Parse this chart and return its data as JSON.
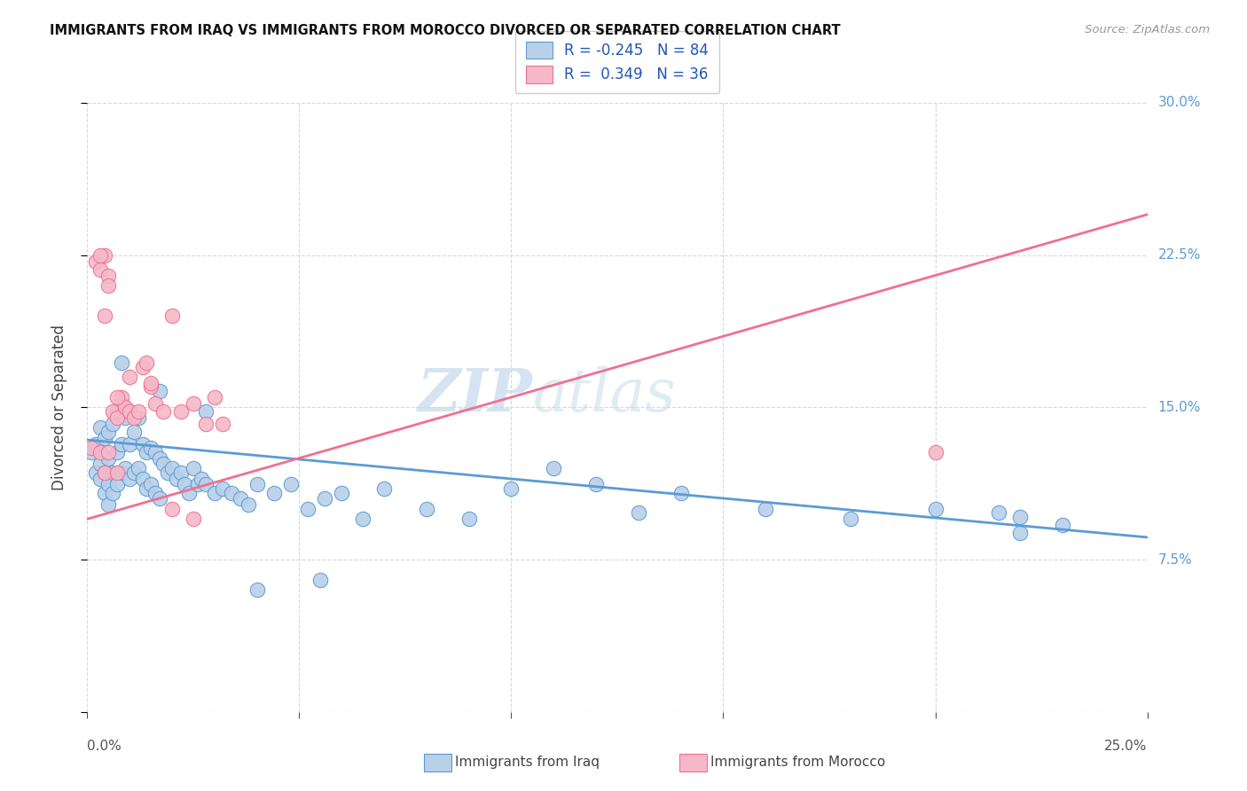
{
  "title": "IMMIGRANTS FROM IRAQ VS IMMIGRANTS FROM MOROCCO DIVORCED OR SEPARATED CORRELATION CHART",
  "source": "Source: ZipAtlas.com",
  "ylabel": "Divorced or Separated",
  "iraq_R": -0.245,
  "iraq_N": 84,
  "morocco_R": 0.349,
  "morocco_N": 36,
  "iraq_color": "#b8d0e8",
  "morocco_color": "#f5b8c8",
  "iraq_line_color": "#5b9bd5",
  "morocco_line_color": "#f07090",
  "legend_label_iraq": "Immigrants from Iraq",
  "legend_label_morocco": "Immigrants from Morocco",
  "watermark_zip": "ZIP",
  "watermark_atlas": "atlas",
  "background_color": "#ffffff",
  "grid_color": "#d8d8d8",
  "xlim": [
    0.0,
    0.25
  ],
  "ylim": [
    0.0,
    0.3
  ],
  "iraq_trend": [
    0.134,
    0.086
  ],
  "morocco_trend": [
    0.095,
    0.245
  ],
  "iraq_x": [
    0.001,
    0.002,
    0.002,
    0.003,
    0.003,
    0.003,
    0.004,
    0.004,
    0.004,
    0.005,
    0.005,
    0.005,
    0.005,
    0.006,
    0.006,
    0.006,
    0.007,
    0.007,
    0.007,
    0.008,
    0.008,
    0.008,
    0.009,
    0.009,
    0.01,
    0.01,
    0.01,
    0.011,
    0.011,
    0.012,
    0.012,
    0.013,
    0.013,
    0.014,
    0.014,
    0.015,
    0.015,
    0.016,
    0.016,
    0.017,
    0.017,
    0.018,
    0.019,
    0.02,
    0.021,
    0.022,
    0.023,
    0.024,
    0.025,
    0.026,
    0.027,
    0.028,
    0.03,
    0.032,
    0.034,
    0.036,
    0.038,
    0.04,
    0.044,
    0.048,
    0.052,
    0.056,
    0.06,
    0.065,
    0.07,
    0.08,
    0.09,
    0.1,
    0.11,
    0.12,
    0.13,
    0.14,
    0.16,
    0.18,
    0.2,
    0.215,
    0.22,
    0.23,
    0.008,
    0.017,
    0.028,
    0.04,
    0.055,
    0.22
  ],
  "iraq_y": [
    0.128,
    0.132,
    0.118,
    0.14,
    0.122,
    0.115,
    0.135,
    0.118,
    0.108,
    0.138,
    0.125,
    0.112,
    0.102,
    0.142,
    0.118,
    0.108,
    0.148,
    0.128,
    0.112,
    0.152,
    0.132,
    0.118,
    0.145,
    0.12,
    0.148,
    0.132,
    0.115,
    0.138,
    0.118,
    0.145,
    0.12,
    0.132,
    0.115,
    0.128,
    0.11,
    0.13,
    0.112,
    0.128,
    0.108,
    0.125,
    0.105,
    0.122,
    0.118,
    0.12,
    0.115,
    0.118,
    0.112,
    0.108,
    0.12,
    0.112,
    0.115,
    0.112,
    0.108,
    0.11,
    0.108,
    0.105,
    0.102,
    0.112,
    0.108,
    0.112,
    0.1,
    0.105,
    0.108,
    0.095,
    0.11,
    0.1,
    0.095,
    0.11,
    0.12,
    0.112,
    0.098,
    0.108,
    0.1,
    0.095,
    0.1,
    0.098,
    0.096,
    0.092,
    0.172,
    0.158,
    0.148,
    0.06,
    0.065,
    0.088
  ],
  "morocco_x": [
    0.001,
    0.002,
    0.003,
    0.003,
    0.004,
    0.004,
    0.005,
    0.005,
    0.006,
    0.007,
    0.007,
    0.008,
    0.009,
    0.01,
    0.011,
    0.012,
    0.013,
    0.014,
    0.015,
    0.016,
    0.018,
    0.02,
    0.022,
    0.025,
    0.028,
    0.03,
    0.003,
    0.005,
    0.007,
    0.01,
    0.015,
    0.02,
    0.025,
    0.032,
    0.2,
    0.004
  ],
  "morocco_y": [
    0.13,
    0.222,
    0.218,
    0.128,
    0.225,
    0.118,
    0.215,
    0.128,
    0.148,
    0.145,
    0.118,
    0.155,
    0.15,
    0.148,
    0.145,
    0.148,
    0.17,
    0.172,
    0.16,
    0.152,
    0.148,
    0.195,
    0.148,
    0.152,
    0.142,
    0.155,
    0.225,
    0.21,
    0.155,
    0.165,
    0.162,
    0.1,
    0.095,
    0.142,
    0.128,
    0.195
  ]
}
